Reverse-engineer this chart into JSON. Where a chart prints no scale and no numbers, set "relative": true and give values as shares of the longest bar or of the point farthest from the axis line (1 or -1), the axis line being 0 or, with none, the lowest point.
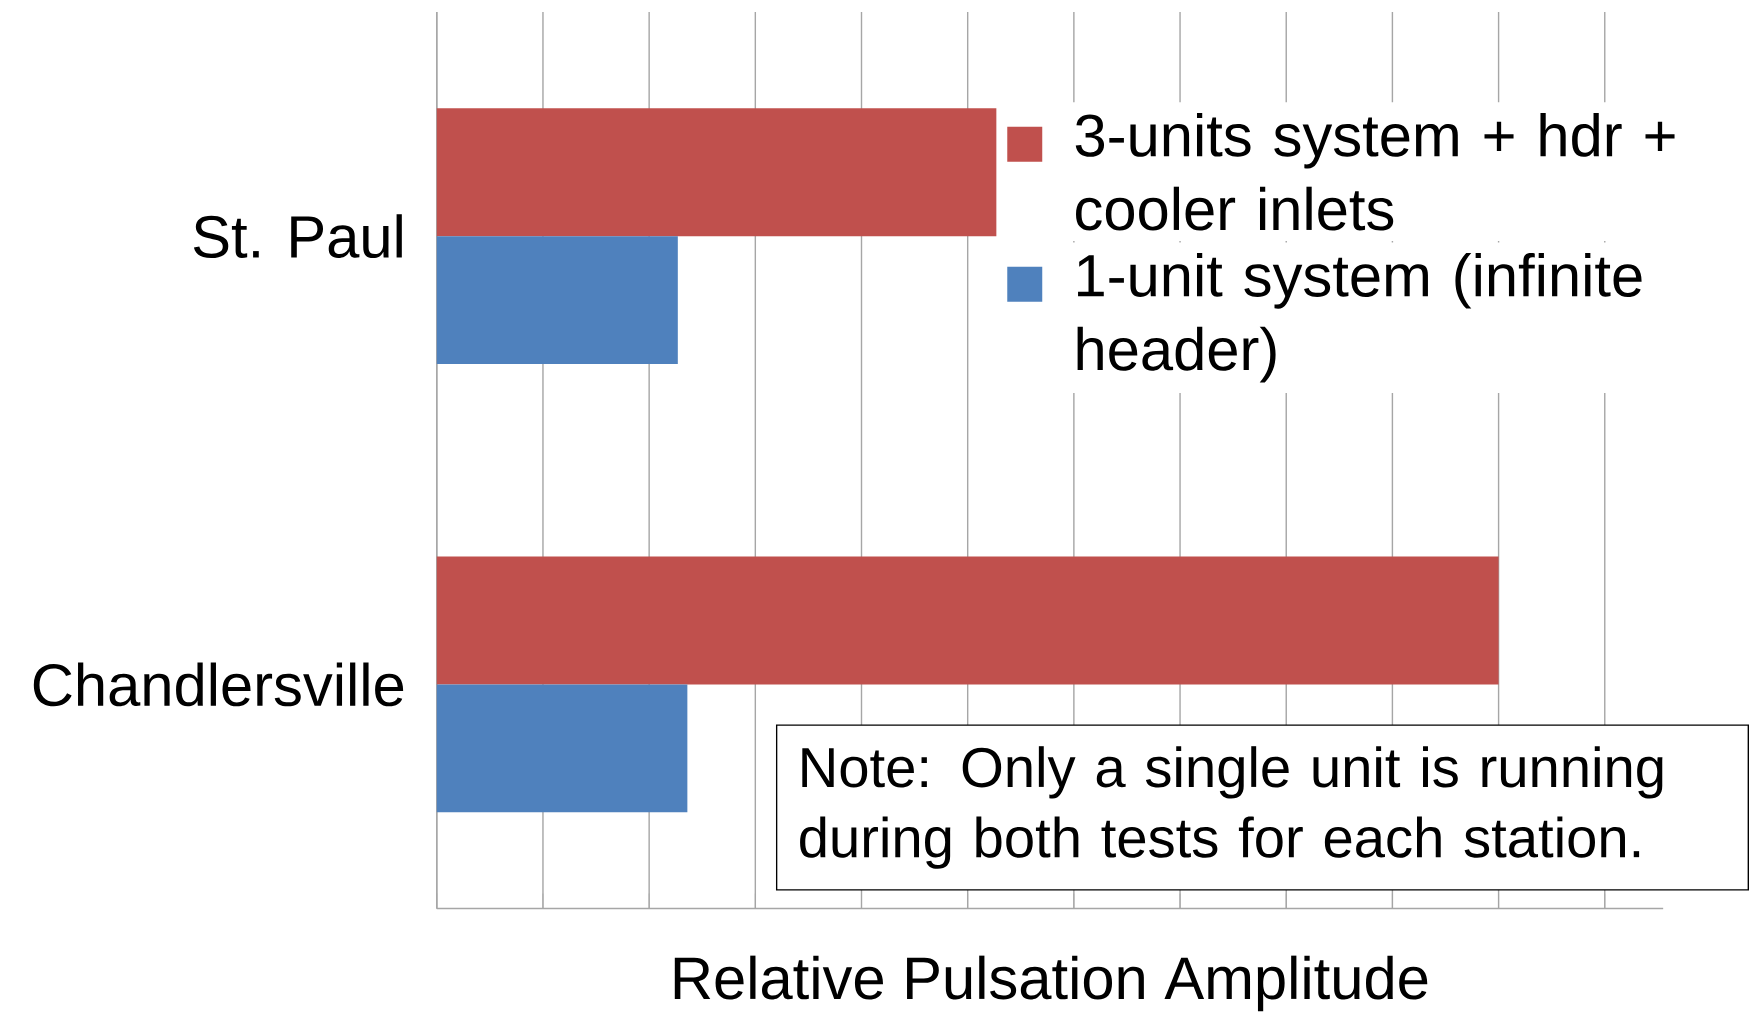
{
  "chart_data": {
    "type": "bar",
    "orientation": "horizontal",
    "relative": true,
    "xlabel": "Relative Pulsation Amplitude",
    "categories": [
      "St. Paul",
      "Chandlersville"
    ],
    "series": [
      {
        "name": "3-units system + hdr + cooler inlets",
        "color": "#c0504d",
        "values": [
          0.527,
          1.0
        ]
      },
      {
        "name": "1-unit system (infinite header)",
        "color": "#4f81bd",
        "values": [
          0.227,
          0.236
        ]
      }
    ],
    "annotations": [
      "Note: Only a single unit is running during both tests for each station."
    ],
    "grid": "x",
    "legend": "top right"
  }
}
